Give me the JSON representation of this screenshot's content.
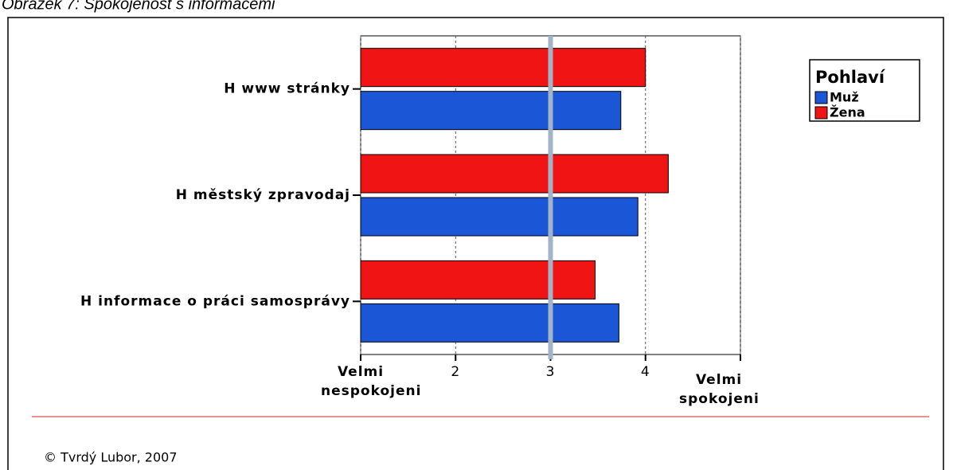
{
  "chart_data": {
    "type": "hbar",
    "title": "Obrázek 7: Spokojenost s informacemi",
    "categories": [
      "H www stránky",
      "H městský zpravodaj",
      "H informace o práci samosprávy"
    ],
    "series": [
      {
        "name": "Muž",
        "color": "#1a56d6",
        "values": [
          3.74,
          3.92,
          3.72
        ]
      },
      {
        "name": "Žena",
        "color": "#f01414",
        "values": [
          4.0,
          4.24,
          3.47
        ]
      }
    ],
    "xlim": [
      1,
      5
    ],
    "xticks": [
      {
        "value": 1,
        "label": "Velmi nespokojeni"
      },
      2,
      3,
      4,
      {
        "value": 5,
        "label": "Velmi spokojeni"
      }
    ],
    "grid": true,
    "reference_line": 3,
    "legend_title": "Pohlaví",
    "legend_position": "upper right",
    "footer": "© Tvrdý Lubor, 2007"
  }
}
